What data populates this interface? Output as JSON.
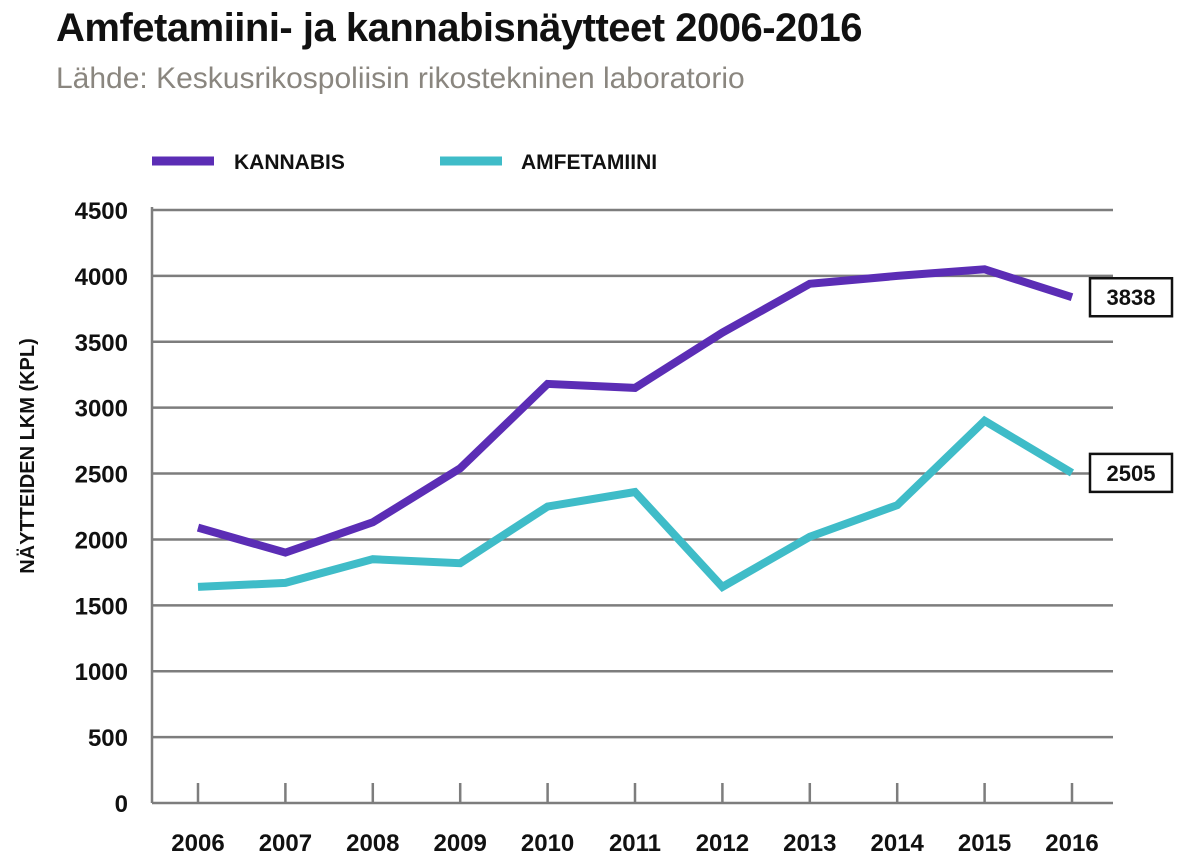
{
  "header": {
    "title": "Amfetamiini- ja kannabisnäytteet 2006-2016",
    "subtitle": "Lähde: Keskusrikospoliisin rikostekninen laboratorio"
  },
  "chart_data": {
    "type": "line",
    "title": "Amfetamiini- ja kannabisnäytteet 2006-2016",
    "subtitle": "Lähde: Keskusrikospoliisin rikostekninen laboratorio",
    "xlabel": "",
    "ylabel": "NÄYTTEIDEN LKM (KPL)",
    "ylim": [
      0,
      4500
    ],
    "yticks": [
      0,
      500,
      1000,
      1500,
      2000,
      2500,
      3000,
      3500,
      4000,
      4500
    ],
    "categories": [
      "2006",
      "2007",
      "2008",
      "2009",
      "2010",
      "2011",
      "2012",
      "2013",
      "2014",
      "2015",
      "2016"
    ],
    "grid": true,
    "legend_position": "top-left",
    "series": [
      {
        "name": "KANNABIS",
        "color": "#5b2db5",
        "values": [
          2090,
          1900,
          2130,
          2540,
          3180,
          3150,
          3570,
          3940,
          4000,
          4050,
          3838
        ],
        "end_label": "3838"
      },
      {
        "name": "AMFETAMIINI",
        "color": "#3fbcc8",
        "values": [
          1640,
          1670,
          1850,
          1820,
          2250,
          2360,
          1640,
          2020,
          2260,
          2900,
          2505
        ],
        "end_label": "2505"
      }
    ]
  }
}
